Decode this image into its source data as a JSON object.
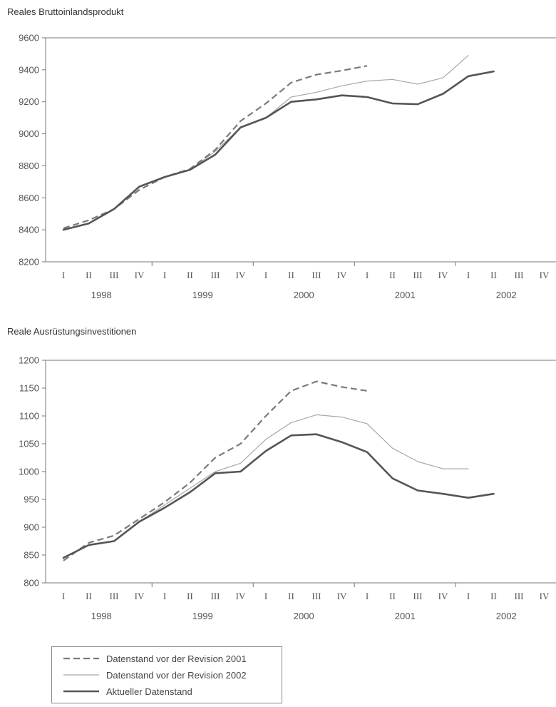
{
  "legend": {
    "items": [
      {
        "label": "Datenstand vor der Revision 2001",
        "style": "dashed"
      },
      {
        "label": "Datenstand vor der Revision 2002",
        "style": "thin"
      },
      {
        "label": "Aktueller Datenstand",
        "style": "thick"
      }
    ]
  },
  "colors": {
    "dashed": "#7a7a7a",
    "thin": "#a8a8a8",
    "thick": "#555555",
    "axis": "#777777"
  },
  "chart_data": [
    {
      "type": "line",
      "title": "Reales Bruttoinlandsprodukt",
      "years": [
        "1998",
        "1999",
        "2000",
        "2001",
        "2002"
      ],
      "quarters": [
        "I",
        "II",
        "III",
        "IV"
      ],
      "ylim": [
        8200,
        9600
      ],
      "yticks": [
        8200,
        8400,
        8600,
        8800,
        9000,
        9200,
        9400,
        9600
      ],
      "series": [
        {
          "name": "Datenstand vor der Revision 2001",
          "style": "dashed",
          "values": [
            8410,
            8460,
            8530,
            8650,
            8730,
            8780,
            8900,
            9080,
            9190,
            9320,
            9370,
            9395,
            9425,
            null,
            null,
            null,
            null,
            null,
            null,
            null
          ]
        },
        {
          "name": "Datenstand vor der Revision 2002",
          "style": "thin",
          "values": [
            8400,
            8440,
            8530,
            8670,
            8730,
            8775,
            8890,
            9040,
            9100,
            9230,
            9260,
            9300,
            9330,
            9340,
            9310,
            9350,
            9490,
            null,
            null,
            null
          ]
        },
        {
          "name": "Aktueller Datenstand",
          "style": "thick",
          "values": [
            8400,
            8440,
            8530,
            8670,
            8730,
            8775,
            8870,
            9040,
            9100,
            9200,
            9215,
            9240,
            9230,
            9190,
            9185,
            9250,
            9360,
            9390,
            null,
            null
          ]
        }
      ]
    },
    {
      "type": "line",
      "title": "Reale Ausrüstungsinvestitionen",
      "years": [
        "1998",
        "1999",
        "2000",
        "2001",
        "2002"
      ],
      "quarters": [
        "I",
        "II",
        "III",
        "IV"
      ],
      "ylim": [
        800,
        1200
      ],
      "yticks": [
        800,
        850,
        900,
        950,
        1000,
        1050,
        1100,
        1150,
        1200
      ],
      "series": [
        {
          "name": "Datenstand vor der Revision 2001",
          "style": "dashed",
          "values": [
            840,
            872,
            885,
            915,
            945,
            980,
            1025,
            1050,
            1100,
            1145,
            1162,
            1152,
            1145,
            null,
            null,
            null,
            null,
            null,
            null,
            null
          ]
        },
        {
          "name": "Datenstand vor der Revision 2002",
          "style": "thin",
          "values": [
            845,
            868,
            875,
            910,
            940,
            970,
            1000,
            1015,
            1058,
            1088,
            1102,
            1098,
            1086,
            1042,
            1018,
            1005,
            1005,
            null,
            null,
            null
          ]
        },
        {
          "name": "Aktueller Datenstand",
          "style": "thick",
          "values": [
            845,
            868,
            875,
            910,
            935,
            963,
            997,
            1000,
            1037,
            1065,
            1067,
            1053,
            1035,
            988,
            966,
            960,
            953,
            960,
            null,
            null
          ]
        }
      ]
    }
  ]
}
